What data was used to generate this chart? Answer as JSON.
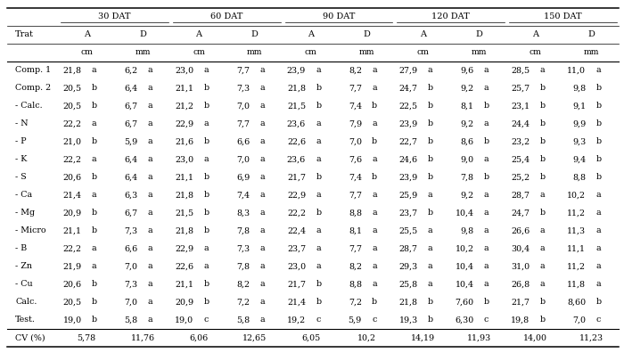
{
  "col_groups": [
    "30 DAT",
    "60 DAT",
    "90 DAT",
    "120 DAT",
    "150 DAT"
  ],
  "sub_cols": [
    "A",
    "D",
    "A",
    "D",
    "A",
    "D",
    "A",
    "D",
    "A",
    "D"
  ],
  "units": [
    "cm",
    "mm",
    "cm",
    "mm",
    "cm",
    "mm",
    "cm",
    "mm",
    "cm",
    "mm"
  ],
  "rows": [
    [
      "Comp. 1",
      "21,8 a",
      "6,2 a",
      "23,0 a",
      "7,7 a",
      "23,9 a",
      "8,2 a",
      "27,9 a",
      "9,6 a",
      "28,5 a",
      "11,0 a"
    ],
    [
      "Comp. 2",
      "20,5 b",
      "6,4 a",
      "21,1 b",
      "7,3 a",
      "21,8 b",
      "7,7 a",
      "24,7 b",
      "9,2 a",
      "25,7 b",
      "9,8 b"
    ],
    [
      "- Calc.",
      "20,5 b",
      "6,7 a",
      "21,2 b",
      "7,0 a",
      "21,5 b",
      "7,4 b",
      "22,5 b",
      "8,1 b",
      "23,1 b",
      "9,1 b"
    ],
    [
      "- N",
      "22,2 a",
      "6,7 a",
      "22,9 a",
      "7,7 a",
      "23,6 a",
      "7,9 a",
      "23,9 b",
      "9,2 a",
      "24,4 b",
      "9,9 b"
    ],
    [
      "- P",
      "21,0 b",
      "5,9 a",
      "21,6 b",
      "6,6 a",
      "22,6 a",
      "7,0 b",
      "22,7 b",
      "8,6 b",
      "23,2 b",
      "9,3 b"
    ],
    [
      "- K",
      "22,2 a",
      "6,4 a",
      "23,0 a",
      "7,0 a",
      "23,6 a",
      "7,6 a",
      "24,6 b",
      "9,0 a",
      "25,4 b",
      "9,4 b"
    ],
    [
      "- S",
      "20,6 b",
      "6,4 a",
      "21,1 b",
      "6,9 a",
      "21,7 b",
      "7,4 b",
      "23,9 b",
      "7,8 b",
      "25,2 b",
      "8,8 b"
    ],
    [
      "- Ca",
      "21,4 a",
      "6,3 a",
      "21,8 b",
      "7,4 a",
      "22,9 a",
      "7,7 a",
      "25,9 a",
      "9,2 a",
      "28,7 a",
      "10,2 a"
    ],
    [
      "- Mg",
      "20,9 b",
      "6,7 a",
      "21,5 b",
      "8,3 a",
      "22,2 b",
      "8,8 a",
      "23,7 b",
      "10,4 a",
      "24,7 b",
      "11,2 a"
    ],
    [
      "- Micro",
      "21,1 b",
      "7,3 a",
      "21,8 b",
      "7,8 a",
      "22,4 a",
      "8,1 a",
      "25,5 a",
      "9,8 a",
      "26,6 a",
      "11,3 a"
    ],
    [
      "- B",
      "22,2 a",
      "6,6 a",
      "22,9 a",
      "7,3 a",
      "23,7 a",
      "7,7 a",
      "28,7 a",
      "10,2 a",
      "30,4 a",
      "11,1 a"
    ],
    [
      "- Zn",
      "21,9 a",
      "7,0 a",
      "22,6 a",
      "7,8 a",
      "23,0 a",
      "8,2 a",
      "29,3 a",
      "10,4 a",
      "31,0 a",
      "11,2 a"
    ],
    [
      "- Cu",
      "20,6 b",
      "7,3 a",
      "21,1 b",
      "8,2 a",
      "21,7 b",
      "8,8 a",
      "25,8 a",
      "10,4 a",
      "26,8 a",
      "11,8 a"
    ],
    [
      "Calc.",
      "20,5 b",
      "7,0 a",
      "20,9 b",
      "7,2 a",
      "21,4 b",
      "7,2 b",
      "21,8 b",
      "7,60 b",
      "21,7 b",
      "8,60 b"
    ],
    [
      "Test.",
      "19,0 b",
      "5,8 a",
      "19,0 c",
      "5,8 a",
      "19,2 c",
      "5,9 c",
      "19,3 b",
      "6,30 c",
      "19,8 b",
      "7,0 c"
    ]
  ],
  "cv_row": [
    "CV (%)",
    "5,78",
    "11,76",
    "6,06",
    "12,65",
    "6,05",
    "10,2",
    "14,19",
    "11,93",
    "14,00",
    "11,23"
  ],
  "bg_color": "#ffffff",
  "text_color": "#000000",
  "font_size": 6.8,
  "header_font_size": 7.0
}
